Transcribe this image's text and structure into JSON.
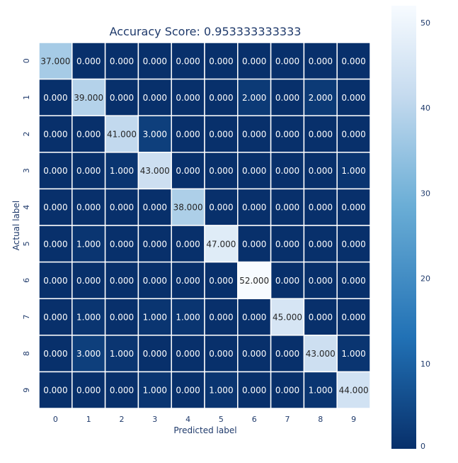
{
  "chart_data": {
    "type": "heatmap",
    "title": "Accuracy Score: 0.953333333333",
    "xlabel": "Predicted label",
    "ylabel": "Actual label",
    "x_categories": [
      "0",
      "1",
      "2",
      "3",
      "4",
      "5",
      "6",
      "7",
      "8",
      "9"
    ],
    "y_categories": [
      "0",
      "1",
      "2",
      "3",
      "4",
      "5",
      "6",
      "7",
      "8",
      "9"
    ],
    "values": [
      [
        37,
        0,
        0,
        0,
        0,
        0,
        0,
        0,
        0,
        0
      ],
      [
        0,
        39,
        0,
        0,
        0,
        0,
        2,
        0,
        2,
        0
      ],
      [
        0,
        0,
        41,
        3,
        0,
        0,
        0,
        0,
        0,
        0
      ],
      [
        0,
        0,
        1,
        43,
        0,
        0,
        0,
        0,
        0,
        1
      ],
      [
        0,
        0,
        0,
        0,
        38,
        0,
        0,
        0,
        0,
        0
      ],
      [
        0,
        1,
        0,
        0,
        0,
        47,
        0,
        0,
        0,
        0
      ],
      [
        0,
        0,
        0,
        0,
        0,
        0,
        52,
        0,
        0,
        0
      ],
      [
        0,
        1,
        0,
        1,
        1,
        0,
        0,
        45,
        0,
        0
      ],
      [
        0,
        3,
        1,
        0,
        0,
        0,
        0,
        0,
        43,
        1
      ],
      [
        0,
        0,
        0,
        1,
        0,
        1,
        0,
        0,
        1,
        44
      ]
    ],
    "value_format": "%.3f",
    "colormap": "Blues_r",
    "color_low": "#08306b",
    "color_high": "#f7fbff",
    "value_range": [
      0,
      52
    ],
    "colorbar": {
      "ticks": [
        "0",
        "10",
        "20",
        "30",
        "40",
        "50"
      ],
      "tick_values": [
        0,
        10,
        20,
        30,
        40,
        50
      ]
    },
    "grid_line_color": "#ffffff",
    "dark_text_color": "#262626",
    "light_text_color": "#ffffff"
  }
}
